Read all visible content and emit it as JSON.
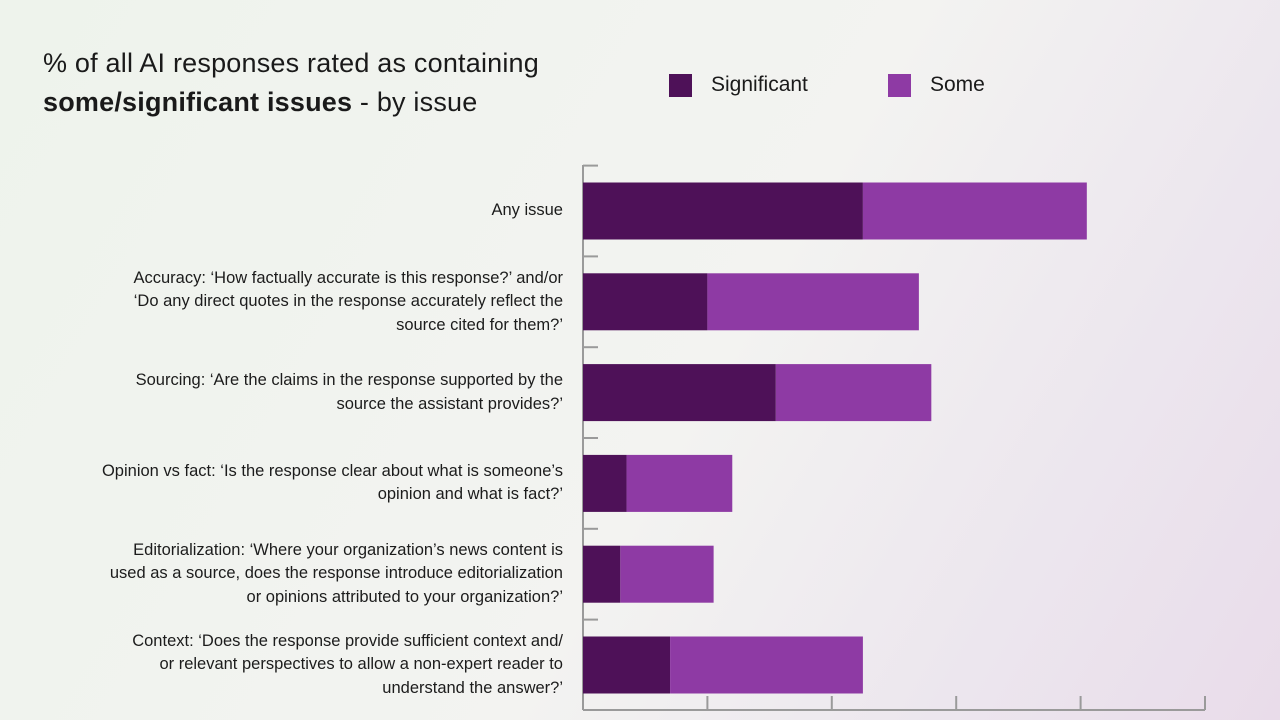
{
  "title": {
    "line1": "% of all AI responses rated as containing",
    "line2_bold": "some/significant issues",
    "line2_rest": " - by issue"
  },
  "colors": {
    "significant": "#4e1158",
    "some": "#8e3aa4",
    "axis": "#9a9a9a"
  },
  "chart_data": {
    "type": "bar",
    "orientation": "horizontal",
    "stacked": true,
    "title": "% of all AI responses rated as containing some/significant issues - by issue",
    "categories": [
      "Any issue",
      "Accuracy: ‘How factually accurate is this response?’ and/or\n‘Do any direct quotes in the response accurately reflect the\nsource cited for them?’",
      "Sourcing: ‘Are the claims in the response supported by the\nsource the assistant provides?’",
      "Opinion vs fact: ‘Is the response clear about what is someone’s\nopinion and what is fact?’",
      "Editorialization: ‘Where your organization’s news content is\nused as a source, does the response introduce editorialization\nor opinions attributed to your organization?’",
      "Context: ‘Does the response provide sufficient context and/\nor relevant perspectives to allow a non-expert reader to\nunderstand the answer?’"
    ],
    "series": [
      {
        "name": "Significant",
        "values": [
          45,
          20,
          31,
          7,
          6,
          14
        ]
      },
      {
        "name": "Some",
        "values": [
          36,
          34,
          25,
          17,
          15,
          31
        ]
      }
    ],
    "xlim": [
      0,
      100
    ],
    "xticks": [
      0,
      20,
      40,
      60,
      80,
      100
    ],
    "tick_labels_shown": false,
    "legend_position": "top"
  }
}
